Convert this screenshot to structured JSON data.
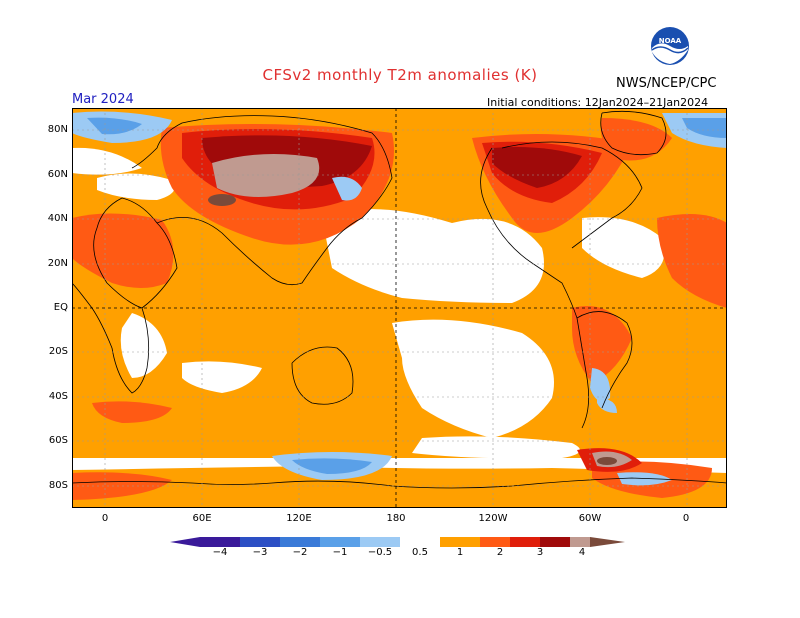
{
  "title": "CFSv2 monthly T2m anomalies (K)",
  "agency": "NWS/NCEP/CPC",
  "logo_text": "NOAA",
  "month": "Mar 2024",
  "initial_conditions": "Initial conditions: 12Jan2024–21Jan2024",
  "lat_labels": [
    "80N",
    "60N",
    "40N",
    "20N",
    "EQ",
    "20S",
    "40S",
    "60S",
    "80S"
  ],
  "lon_labels": [
    "0",
    "60E",
    "120E",
    "180",
    "120W",
    "60W",
    "0"
  ],
  "colorbar": {
    "labels": [
      "−4",
      "−3",
      "−2",
      "−1",
      "−0.5",
      "0.5",
      "1",
      "2",
      "3",
      "4"
    ],
    "colors": [
      "#3a1a9a",
      "#2c4fc4",
      "#3a7ad8",
      "#5aa0e8",
      "#9ccaf4",
      "#ffffff",
      "#ffa000",
      "#ff5a14",
      "#e01e0a",
      "#a00a0a",
      "#c09a90",
      "#7a4a3a"
    ]
  },
  "anomaly_colors": {
    "cold4": "#3a1a9a",
    "cold3": "#2c4fc4",
    "cold2": "#3a7ad8",
    "cold1": "#5aa0e8",
    "cold05": "#9ccaf4",
    "neutral": "#ffffff",
    "warm05": "#ffa000",
    "warm1": "#ff5a14",
    "warm2": "#e01e0a",
    "warm3": "#a00a0a",
    "warm4": "#c09a90",
    "warm5": "#7a4a3a"
  }
}
